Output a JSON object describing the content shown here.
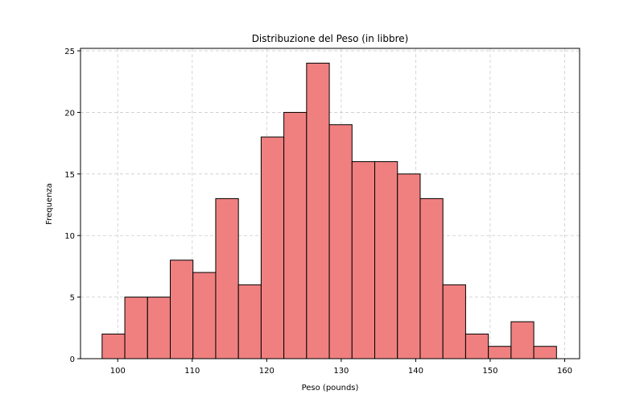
{
  "chart_data": {
    "type": "bar",
    "title": "Distribuzione del Peso (in libbre)",
    "xlabel": "Peso (pounds)",
    "ylabel": "Frequenza",
    "xlim": [
      95,
      162
    ],
    "ylim": [
      0,
      25.2
    ],
    "xticks": [
      100,
      110,
      120,
      130,
      140,
      150,
      160
    ],
    "yticks": [
      0,
      5,
      10,
      15,
      20,
      25
    ],
    "grid": true,
    "bin_edges": [
      97.9,
      100.95,
      104.0,
      107.05,
      110.1,
      113.15,
      116.2,
      119.25,
      122.3,
      125.35,
      128.4,
      131.45,
      134.5,
      137.55,
      140.6,
      143.65,
      146.7,
      149.75,
      152.8,
      155.85,
      158.9
    ],
    "values": [
      2,
      5,
      5,
      8,
      7,
      13,
      6,
      18,
      20,
      24,
      19,
      16,
      16,
      15,
      13,
      6,
      2,
      1,
      3,
      1
    ],
    "colors": {
      "bar_fill": "#f08080",
      "bar_edge": "#000000",
      "grid": "#cccccc",
      "axis": "#000000"
    }
  }
}
